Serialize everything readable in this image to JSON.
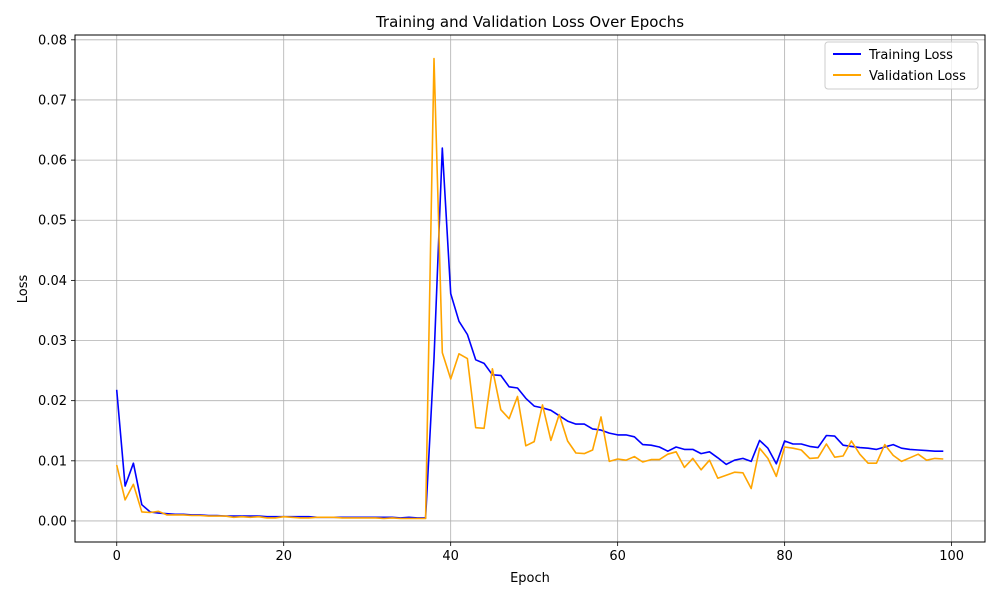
{
  "chart_data": {
    "type": "line",
    "title": "Training and Validation Loss Over Epochs",
    "xlabel": "Epoch",
    "ylabel": "Loss",
    "xlim": [
      -5,
      104
    ],
    "ylim": [
      -0.0035,
      0.0808
    ],
    "xticks": [
      0,
      20,
      40,
      60,
      80,
      100
    ],
    "yticks": [
      0.0,
      0.01,
      0.02,
      0.03,
      0.04,
      0.05,
      0.06,
      0.07,
      0.08
    ],
    "ytick_labels": [
      "0.00",
      "0.01",
      "0.02",
      "0.03",
      "0.04",
      "0.05",
      "0.06",
      "0.07",
      "0.08"
    ],
    "xtick_labels": [
      "0",
      "20",
      "40",
      "60",
      "80",
      "100"
    ],
    "grid": true,
    "legend_position": "top-right",
    "series": [
      {
        "name": "Training Loss",
        "color": "#0000ff",
        "x": [
          0,
          1,
          2,
          3,
          4,
          5,
          6,
          7,
          8,
          9,
          10,
          11,
          12,
          13,
          14,
          15,
          16,
          17,
          18,
          19,
          20,
          21,
          22,
          23,
          24,
          25,
          26,
          27,
          28,
          29,
          30,
          31,
          32,
          33,
          34,
          35,
          36,
          37,
          38,
          39,
          40,
          41,
          42,
          43,
          44,
          45,
          46,
          47,
          48,
          49,
          50,
          51,
          52,
          53,
          54,
          55,
          56,
          57,
          58,
          59,
          60,
          61,
          62,
          63,
          64,
          65,
          66,
          67,
          68,
          69,
          70,
          71,
          72,
          73,
          74,
          75,
          76,
          77,
          78,
          79,
          80,
          81,
          82,
          83,
          84,
          85,
          86,
          87,
          88,
          89,
          90,
          91,
          92,
          93,
          94,
          95,
          96,
          97,
          98,
          99
        ],
        "values": [
          0.0218,
          0.0058,
          0.0096,
          0.0027,
          0.0015,
          0.0013,
          0.0012,
          0.0011,
          0.0011,
          0.001,
          0.001,
          0.0009,
          0.0009,
          0.0008,
          0.0008,
          0.0008,
          0.0008,
          0.0008,
          0.0007,
          0.0007,
          0.0007,
          0.0007,
          0.0007,
          0.0007,
          0.0006,
          0.0006,
          0.0006,
          0.0006,
          0.0006,
          0.0006,
          0.0006,
          0.0006,
          0.0006,
          0.0006,
          0.0005,
          0.0006,
          0.0005,
          0.0005,
          0.027,
          0.062,
          0.0378,
          0.0332,
          0.031,
          0.0268,
          0.0262,
          0.0243,
          0.0242,
          0.0223,
          0.0221,
          0.0204,
          0.0191,
          0.0188,
          0.0184,
          0.0175,
          0.0166,
          0.0161,
          0.0161,
          0.0153,
          0.0151,
          0.0146,
          0.0143,
          0.0143,
          0.014,
          0.0127,
          0.0126,
          0.0123,
          0.0116,
          0.0123,
          0.0119,
          0.0119,
          0.0112,
          0.0115,
          0.0105,
          0.0094,
          0.0101,
          0.0104,
          0.0099,
          0.0134,
          0.0121,
          0.0095,
          0.0133,
          0.0128,
          0.0128,
          0.0124,
          0.0122,
          0.0142,
          0.0141,
          0.0126,
          0.0124,
          0.0122,
          0.0121,
          0.0119,
          0.0123,
          0.0127,
          0.0121,
          0.0119,
          0.0118,
          0.0117,
          0.0116,
          0.0116
        ]
      },
      {
        "name": "Validation Loss",
        "color": "#ffa500",
        "x": [
          0,
          1,
          2,
          3,
          4,
          5,
          6,
          7,
          8,
          9,
          10,
          11,
          12,
          13,
          14,
          15,
          16,
          17,
          18,
          19,
          20,
          21,
          22,
          23,
          24,
          25,
          26,
          27,
          28,
          29,
          30,
          31,
          32,
          33,
          34,
          35,
          36,
          37,
          38,
          39,
          40,
          41,
          42,
          43,
          44,
          45,
          46,
          47,
          48,
          49,
          50,
          51,
          52,
          53,
          54,
          55,
          56,
          57,
          58,
          59,
          60,
          61,
          62,
          63,
          64,
          65,
          66,
          67,
          68,
          69,
          70,
          71,
          72,
          73,
          74,
          75,
          76,
          77,
          78,
          79,
          80,
          81,
          82,
          83,
          84,
          85,
          86,
          87,
          88,
          89,
          90,
          91,
          92,
          93,
          94,
          95,
          96,
          97,
          98,
          99
        ],
        "values": [
          0.0093,
          0.0035,
          0.0061,
          0.0015,
          0.0014,
          0.0016,
          0.001,
          0.001,
          0.001,
          0.0009,
          0.0009,
          0.0008,
          0.0008,
          0.0008,
          0.0006,
          0.0007,
          0.0006,
          0.0007,
          0.0005,
          0.0005,
          0.0007,
          0.0006,
          0.0005,
          0.0005,
          0.0006,
          0.0006,
          0.0006,
          0.0005,
          0.0005,
          0.0005,
          0.0005,
          0.0005,
          0.0004,
          0.0005,
          0.0004,
          0.0004,
          0.0004,
          0.0004,
          0.0769,
          0.028,
          0.0236,
          0.0278,
          0.027,
          0.0155,
          0.0154,
          0.0253,
          0.0185,
          0.017,
          0.0207,
          0.0125,
          0.0132,
          0.0193,
          0.0134,
          0.0177,
          0.0133,
          0.0113,
          0.0112,
          0.0118,
          0.0173,
          0.0099,
          0.0103,
          0.0101,
          0.0107,
          0.0098,
          0.0102,
          0.0102,
          0.0111,
          0.0115,
          0.0089,
          0.0104,
          0.0085,
          0.0101,
          0.0071,
          0.0076,
          0.0081,
          0.008,
          0.0054,
          0.0121,
          0.0104,
          0.0074,
          0.0123,
          0.0121,
          0.0118,
          0.0104,
          0.0105,
          0.0128,
          0.0106,
          0.0108,
          0.0133,
          0.0111,
          0.0096,
          0.0096,
          0.0127,
          0.0109,
          0.0099,
          0.0105,
          0.0111,
          0.0101,
          0.0104,
          0.0103
        ]
      }
    ]
  }
}
